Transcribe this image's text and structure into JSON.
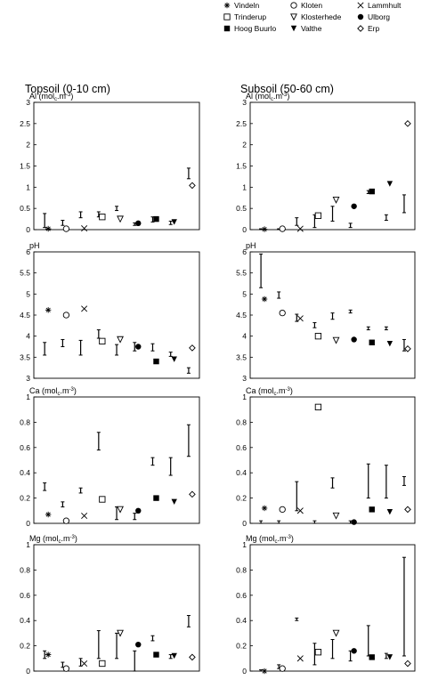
{
  "legend": [
    {
      "name": "Vindeln",
      "symbol": "asterisk"
    },
    {
      "name": "Kloten",
      "symbol": "circle-open"
    },
    {
      "name": "Lammhult",
      "symbol": "cross"
    },
    {
      "name": "Trinderup",
      "symbol": "square-open"
    },
    {
      "name": "Klosterhede",
      "symbol": "triangle-down-open"
    },
    {
      "name": "Ulborg",
      "symbol": "circle-filled"
    },
    {
      "name": "Hoog Buurlo",
      "symbol": "square-filled"
    },
    {
      "name": "Valthe",
      "symbol": "triangle-down-filled"
    },
    {
      "name": "Erp",
      "symbol": "diamond-open"
    }
  ],
  "columns": [
    {
      "title": "Topsoil (0-10 cm)"
    },
    {
      "title": "Subsoil (50-60 cm)"
    }
  ],
  "chart_data": [
    {
      "type": "scatter",
      "id": "al-top",
      "title": "Al (molc.m-3)",
      "title_main": "Al (mol",
      "title_sub": "c",
      "title_tail": ".m",
      "title_sup": "-3",
      "title_close": ")",
      "ylim": [
        0,
        3
      ],
      "yticks": [
        "0",
        "0.5",
        "1",
        "1.5",
        "2",
        "2.5",
        "3"
      ],
      "yvals": [
        0,
        0.5,
        1,
        1.5,
        2,
        2.5,
        3
      ],
      "points": [
        0.02,
        0.02,
        0.03,
        0.3,
        0.25,
        0.15,
        0.25,
        0.18,
        1.04
      ],
      "ranges": [
        [
          0.05,
          0.38
        ],
        [
          0.1,
          0.22
        ],
        [
          0.28,
          0.42
        ],
        [
          0.3,
          0.42
        ],
        [
          0.45,
          0.55
        ],
        [
          0.1,
          0.16
        ],
        [
          0.18,
          0.3
        ],
        [
          0.12,
          0.2
        ],
        [
          1.2,
          1.45
        ]
      ],
      "range_x": [
        1,
        2,
        3,
        4,
        5,
        6,
        7,
        8,
        9
      ]
    },
    {
      "type": "scatter",
      "id": "al-sub",
      "title": "Al (molc.m-3)",
      "title_main": "Al (mol",
      "title_sub": "c",
      "title_tail": ".m",
      "title_sup": "-3",
      "title_close": ")",
      "ylim": [
        0,
        3
      ],
      "yticks": [
        "0",
        "0.5",
        "1",
        "1.5",
        "2",
        "2.5",
        "3"
      ],
      "yvals": [
        0,
        0.5,
        1,
        1.5,
        2,
        2.5,
        3
      ],
      "points": [
        0.01,
        0.02,
        0.02,
        0.33,
        0.7,
        0.55,
        0.9,
        1.08,
        2.5
      ],
      "ranges": [
        [
          0.0,
          0.02
        ],
        [
          0.0,
          0.02
        ],
        [
          0.1,
          0.28
        ],
        [
          0.05,
          0.35
        ],
        [
          0.2,
          0.55
        ],
        [
          0.05,
          0.15
        ],
        [
          0.85,
          0.92
        ],
        [
          0.22,
          0.35
        ],
        [
          0.4,
          0.82
        ]
      ],
      "range_x": [
        1,
        2,
        3,
        4,
        5,
        6,
        7,
        8,
        9
      ]
    },
    {
      "type": "scatter",
      "id": "ph-top",
      "title": "pH",
      "ylim": [
        3,
        6
      ],
      "yticks": [
        "3",
        "3.5",
        "4",
        "4.5",
        "5",
        "5.5",
        "6"
      ],
      "yvals": [
        3,
        3.5,
        4,
        4.5,
        5,
        5.5,
        6
      ],
      "points": [
        4.62,
        4.5,
        4.65,
        3.88,
        3.92,
        3.75,
        3.4,
        3.45,
        3.72
      ],
      "ranges": [
        [
          3.55,
          3.85
        ],
        [
          3.75,
          3.92
        ],
        [
          3.55,
          3.9
        ],
        [
          3.95,
          4.15
        ],
        [
          3.55,
          3.8
        ],
        [
          3.65,
          3.85
        ],
        [
          3.65,
          3.82
        ],
        [
          3.52,
          3.62
        ],
        [
          3.12,
          3.25
        ]
      ],
      "range_x": [
        1,
        2,
        3,
        4,
        5,
        6,
        7,
        8,
        9
      ]
    },
    {
      "type": "scatter",
      "id": "ph-sub",
      "title": "pH",
      "ylim": [
        3,
        6
      ],
      "yticks": [
        "3",
        "3.5",
        "4",
        "4.5",
        "5",
        "5.5",
        "6"
      ],
      "yvals": [
        3,
        3.5,
        4,
        4.5,
        5,
        5.5,
        6
      ],
      "points": [
        4.88,
        4.55,
        4.42,
        4.0,
        3.9,
        3.92,
        3.85,
        3.82,
        3.7
      ],
      "ranges": [
        [
          5.15,
          5.95
        ],
        [
          4.9,
          5.05
        ],
        [
          4.35,
          4.52
        ],
        [
          4.2,
          4.32
        ],
        [
          4.4,
          4.55
        ],
        [
          4.55,
          4.62
        ],
        [
          4.15,
          4.22
        ],
        [
          4.15,
          4.22
        ],
        [
          3.65,
          3.92
        ]
      ],
      "range_x": [
        1,
        2,
        3,
        4,
        5,
        6,
        7,
        8,
        9
      ]
    },
    {
      "type": "scatter",
      "id": "ca-top",
      "title": "Ca (molc.m-3)",
      "title_main": "Ca (mol",
      "title_sub": "c",
      "title_tail": ".m",
      "title_sup": "-3",
      "title_close": ")",
      "ylim": [
        0,
        1
      ],
      "yticks": [
        "0",
        "0.2",
        "0.4",
        "0.6",
        "0.8",
        "1"
      ],
      "yvals": [
        0,
        0.2,
        0.4,
        0.6,
        0.8,
        1
      ],
      "points": [
        0.07,
        0.02,
        0.06,
        0.19,
        0.11,
        0.1,
        0.2,
        0.17,
        0.23
      ],
      "ranges": [
        [
          0.26,
          0.32
        ],
        [
          0.13,
          0.17
        ],
        [
          0.24,
          0.28
        ],
        [
          0.58,
          0.72
        ],
        [
          0.03,
          0.13
        ],
        [
          0.03,
          0.08
        ],
        [
          0.46,
          0.52
        ],
        [
          0.38,
          0.52
        ],
        [
          0.53,
          0.78
        ]
      ],
      "range_x": [
        1,
        2,
        3,
        4,
        5,
        6,
        7,
        8,
        9
      ]
    },
    {
      "type": "scatter",
      "id": "ca-sub",
      "title": "Ca (molc.m-3)",
      "title_main": "Ca (mol",
      "title_sub": "c",
      "title_tail": ".m",
      "title_sup": "-3",
      "title_close": ")",
      "ylim": [
        0,
        1
      ],
      "yticks": [
        "0",
        "0.2",
        "0.4",
        "0.6",
        "0.8",
        "1"
      ],
      "yvals": [
        0,
        0.2,
        0.4,
        0.6,
        0.8,
        1
      ],
      "points": [
        0.12,
        0.11,
        0.1,
        0.92,
        0.06,
        0.01,
        0.11,
        0.09,
        0.11
      ],
      "ranges": [
        [
          0.0,
          0.02
        ],
        [
          0.0,
          0.02
        ],
        [
          0.1,
          0.33
        ],
        [
          0.0,
          0.02
        ],
        [
          0.28,
          0.36
        ],
        [
          0.0,
          0.02
        ],
        [
          0.2,
          0.47
        ],
        [
          0.2,
          0.46
        ],
        [
          0.3,
          0.37
        ]
      ],
      "range_x": [
        1,
        2,
        3,
        4,
        5,
        6,
        7,
        8,
        9
      ]
    },
    {
      "type": "scatter",
      "id": "mg-top",
      "title": "Mg (molc.m-3)",
      "title_main": "Mg (mol",
      "title_sub": "c",
      "title_tail": ".m",
      "title_sup": "-3",
      "title_close": ")",
      "ylim": [
        0,
        1
      ],
      "yticks": [
        "0",
        "0.2",
        "0.4",
        "0.6",
        "0.8",
        "1"
      ],
      "yvals": [
        0,
        0.2,
        0.4,
        0.6,
        0.8,
        1
      ],
      "points": [
        0.13,
        0.02,
        0.06,
        0.06,
        0.3,
        0.21,
        0.13,
        0.12,
        0.11
      ],
      "ranges": [
        [
          0.1,
          0.16
        ],
        [
          0.03,
          0.07
        ],
        [
          0.04,
          0.1
        ],
        [
          0.1,
          0.32
        ],
        [
          0.1,
          0.3
        ],
        [
          0.0,
          0.16
        ],
        [
          0.24,
          0.28
        ],
        [
          0.1,
          0.13
        ],
        [
          0.35,
          0.44
        ]
      ],
      "range_x": [
        1,
        2,
        3,
        4,
        5,
        6,
        7,
        8,
        9
      ]
    },
    {
      "type": "scatter",
      "id": "mg-sub",
      "title": "Mg (molc.m-3)",
      "title_main": "Mg (mol",
      "title_sub": "c",
      "title_tail": ".m",
      "title_sup": "-3",
      "title_close": ")",
      "ylim": [
        0,
        1
      ],
      "yticks": [
        "0",
        "0.2",
        "0.4",
        "0.6",
        "0.8",
        "1"
      ],
      "yvals": [
        0,
        0.2,
        0.4,
        0.6,
        0.8,
        1
      ],
      "points": [
        0.0,
        0.02,
        0.1,
        0.15,
        0.3,
        0.16,
        0.11,
        0.11,
        0.06
      ],
      "ranges": [
        [
          0.0,
          0.01
        ],
        [
          0.02,
          0.05
        ],
        [
          0.4,
          0.42
        ],
        [
          0.05,
          0.22
        ],
        [
          0.1,
          0.25
        ],
        [
          0.08,
          0.16
        ],
        [
          0.12,
          0.36
        ],
        [
          0.1,
          0.14
        ],
        [
          0.12,
          0.9
        ]
      ],
      "range_x": [
        1,
        2,
        3,
        4,
        5,
        6,
        7,
        8,
        9
      ]
    }
  ]
}
